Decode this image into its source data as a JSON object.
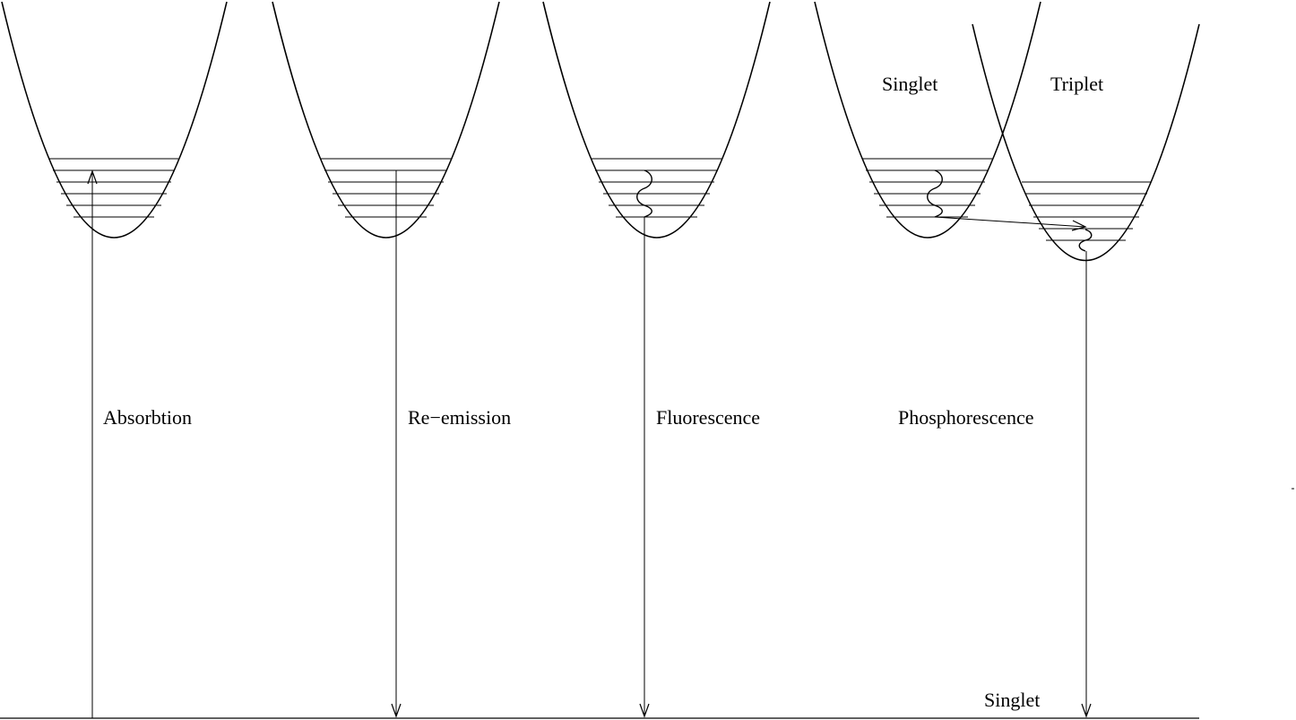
{
  "colors": {
    "ink": "#000000",
    "background": "#ffffff"
  },
  "labels": {
    "absorbtion": "Absorbtion",
    "re_emission": "Re−emission",
    "fluorescence": "Fluorescence",
    "phosphorescence": "Phosphorescence",
    "singlet_upper": "Singlet",
    "triplet_upper": "Triplet",
    "singlet_ground": "Singlet"
  }
}
